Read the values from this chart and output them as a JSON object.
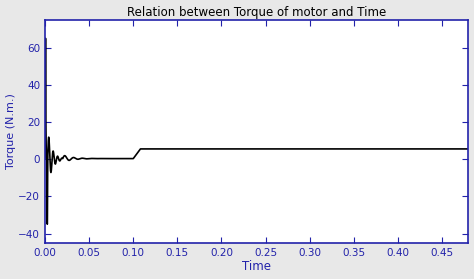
{
  "title": "Relation between Torque of motor and Time",
  "xlabel": "Time",
  "ylabel": "Torque (N.m.)",
  "xlim": [
    0,
    0.48
  ],
  "ylim": [
    -45,
    75
  ],
  "yticks": [
    -40,
    -20,
    0,
    20,
    40,
    60
  ],
  "xticks": [
    0,
    0.05,
    0.1,
    0.15,
    0.2,
    0.25,
    0.3,
    0.35,
    0.4,
    0.45
  ],
  "line_color": "#000000",
  "axis_color": "#2222aa",
  "bg_color": "#ffffff",
  "fig_bg_color": "#e8e8e8",
  "title_color": "#000000",
  "label_color": "#2222aa",
  "tick_color": "#2222aa"
}
